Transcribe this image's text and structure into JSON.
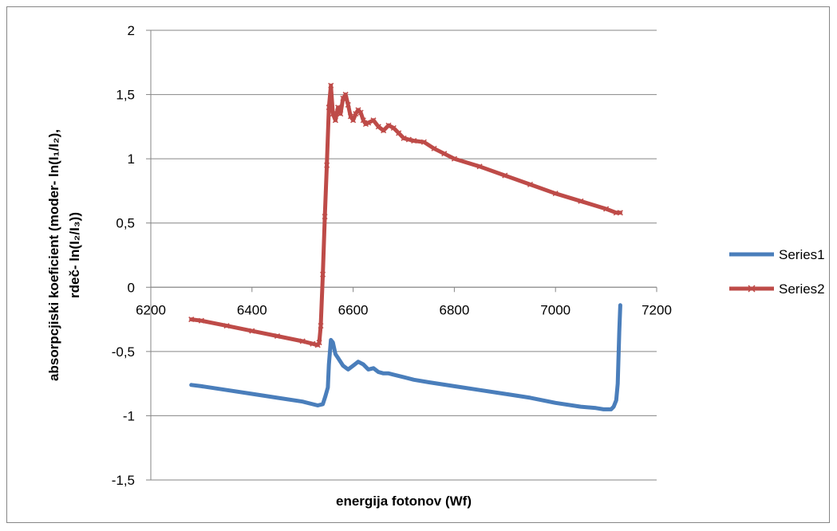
{
  "chart_data": {
    "type": "line",
    "title": "",
    "xlabel": "energija fotonov (Wf)",
    "ylabel_line1": "absorpcjiski koeficient (moder- ln(I₁/I₂),",
    "ylabel_line2": "rdeč- ln(I₂/I₃))",
    "xlim": [
      6200,
      7200
    ],
    "ylim": [
      -1.5,
      2
    ],
    "x_ticks": [
      6200,
      6400,
      6600,
      6800,
      7000,
      7200
    ],
    "x_tick_labels": [
      "6200",
      "6400",
      "6600",
      "6800",
      "7000",
      "7200"
    ],
    "y_ticks": [
      -1.5,
      -1,
      -0.5,
      0,
      0.5,
      1,
      1.5,
      2
    ],
    "y_tick_labels": [
      "-1,5",
      "-1",
      "-0,5",
      "0",
      "0,5",
      "1",
      "1,5",
      "2"
    ],
    "grid": "horizontal",
    "legend_position": "right",
    "series": [
      {
        "name": "Series1",
        "color": "#4a7ebb",
        "marker": "none",
        "x": [
          6280,
          6300,
          6350,
          6400,
          6450,
          6500,
          6530,
          6540,
          6545,
          6550,
          6552,
          6556,
          6560,
          6565,
          6570,
          6580,
          6590,
          6600,
          6610,
          6620,
          6630,
          6640,
          6650,
          6660,
          6670,
          6680,
          6700,
          6720,
          6750,
          6800,
          6850,
          6900,
          6950,
          7000,
          7050,
          7080,
          7095,
          7100,
          7105,
          7110,
          7115,
          7120,
          7123,
          7126,
          7128
        ],
        "y": [
          -0.76,
          -0.77,
          -0.8,
          -0.83,
          -0.86,
          -0.89,
          -0.92,
          -0.91,
          -0.85,
          -0.78,
          -0.6,
          -0.41,
          -0.43,
          -0.52,
          -0.55,
          -0.61,
          -0.64,
          -0.61,
          -0.58,
          -0.6,
          -0.64,
          -0.63,
          -0.66,
          -0.67,
          -0.67,
          -0.68,
          -0.7,
          -0.72,
          -0.74,
          -0.77,
          -0.8,
          -0.83,
          -0.86,
          -0.9,
          -0.93,
          -0.94,
          -0.95,
          -0.95,
          -0.95,
          -0.95,
          -0.93,
          -0.88,
          -0.75,
          -0.35,
          -0.14
        ]
      },
      {
        "name": "Series2",
        "color": "#be4b48",
        "marker": "x",
        "x": [
          6280,
          6300,
          6350,
          6400,
          6450,
          6500,
          6520,
          6530,
          6533,
          6536,
          6540,
          6544,
          6548,
          6552,
          6556,
          6560,
          6565,
          6570,
          6575,
          6580,
          6585,
          6590,
          6595,
          6600,
          6605,
          6610,
          6615,
          6620,
          6625,
          6630,
          6640,
          6650,
          6660,
          6670,
          6680,
          6690,
          6700,
          6710,
          6720,
          6740,
          6760,
          6780,
          6800,
          6850,
          6900,
          6950,
          7000,
          7050,
          7100,
          7120,
          7128
        ],
        "y": [
          -0.25,
          -0.26,
          -0.3,
          -0.34,
          -0.38,
          -0.42,
          -0.44,
          -0.45,
          -0.43,
          -0.3,
          0.1,
          0.55,
          0.95,
          1.4,
          1.57,
          1.35,
          1.3,
          1.4,
          1.35,
          1.47,
          1.5,
          1.42,
          1.33,
          1.3,
          1.35,
          1.38,
          1.36,
          1.3,
          1.27,
          1.28,
          1.3,
          1.25,
          1.22,
          1.26,
          1.24,
          1.2,
          1.16,
          1.15,
          1.14,
          1.13,
          1.08,
          1.04,
          1.0,
          0.94,
          0.87,
          0.8,
          0.73,
          0.67,
          0.61,
          0.58,
          0.58
        ]
      }
    ]
  }
}
